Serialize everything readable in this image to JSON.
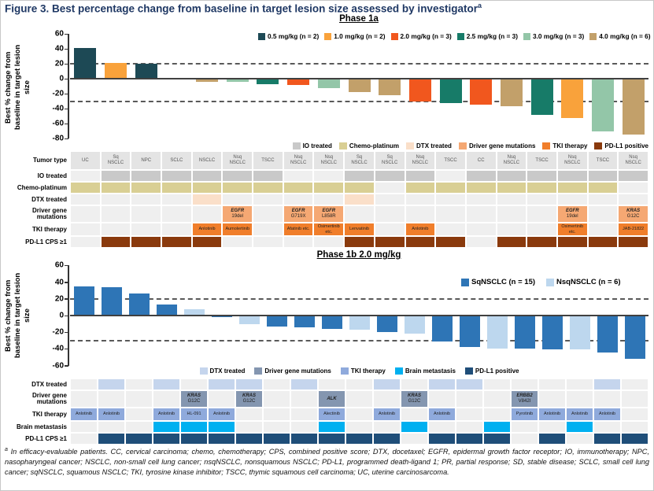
{
  "figure": {
    "title": "Figure 3. Best percentage change from baseline in target lesion size assessed by investigator",
    "title_superscript": "a",
    "footnote_superscript": "a",
    "footnote": "In efficacy-evaluable patients. CC, cervical carcinoma; chemo, chemotherapy; CPS, combined positive score; DTX, docetaxel; EGFR, epidermal growth factor receptor; IO, immunotherapy; NPC, nasopharyngeal cancer; NSCLC, non-small cell lung cancer; nsqNSCLC, nonsquamous NSCLC; PD-L1, programmed death-ligand 1; PR, partial response; SD, stable disease; SCLC, small cell lung cancer; sqNSCLC, squamous NSCLC; TKI, tyrosine kinase inhibitor; TSCC, thymic squamous cell carcinoma; UC, uterine carcinosarcoma."
  },
  "chart_data": [
    {
      "type": "bar",
      "title": "Phase 1a",
      "ylabel": "Best % change from\nbaseline in target lesion\nsize",
      "ylim": [
        -80,
        60
      ],
      "yticks": [
        60,
        40,
        20,
        0,
        -20,
        -40,
        -60,
        -80
      ],
      "reference_lines": [
        20,
        -30
      ],
      "grid": false,
      "legend_position": "top-right-inside",
      "series_legend": [
        {
          "key": "0.5",
          "label": "0.5 mg/kg (n = 2)",
          "color": "#1D4955"
        },
        {
          "key": "1.0",
          "label": "1.0 mg/kg (n = 2)",
          "color": "#F9A23B"
        },
        {
          "key": "2.0",
          "label": "2.0 mg/kg (n = 3)",
          "color": "#F1571E"
        },
        {
          "key": "2.5",
          "label": "2.5 mg/kg (n = 3)",
          "color": "#177B68"
        },
        {
          "key": "3.0",
          "label": "3.0 mg/kg (n = 3)",
          "color": "#93C6A8"
        },
        {
          "key": "4.0",
          "label": "4.0 mg/kg (n = 6)",
          "color": "#C2A06A"
        }
      ],
      "attribute_legend": [
        {
          "key": "io",
          "label": "IO treated",
          "color": "#C9C9C9"
        },
        {
          "key": "chemo",
          "label": "Chemo-platinum",
          "color": "#D9CF94"
        },
        {
          "key": "dtx",
          "label": "DTX treated",
          "color": "#FADFC9"
        },
        {
          "key": "driver",
          "label": "Driver gene mutations",
          "color": "#F5A873"
        },
        {
          "key": "tki",
          "label": "TKI therapy",
          "color": "#F07E2B"
        },
        {
          "key": "pdl1",
          "label": "PD-L1 positive",
          "color": "#8A3A0D"
        }
      ],
      "grid_rows": [
        {
          "key": "tumor",
          "label": "Tumor type"
        },
        {
          "key": "io",
          "label": "IO treated"
        },
        {
          "key": "chemo",
          "label": "Chemo-platinum"
        },
        {
          "key": "dtx",
          "label": "DTX treated"
        },
        {
          "key": "driver",
          "label": "Driver gene mutations"
        },
        {
          "key": "tki",
          "label": "TKI therapy"
        },
        {
          "key": "pdl1",
          "label": "PD-L1 CPS ≥1"
        }
      ],
      "patients": [
        {
          "tumor": "UC",
          "series": "0.5",
          "value": 41,
          "io": false,
          "chemo": true,
          "dtx": false,
          "driver": null,
          "tki": null,
          "pdl1": false
        },
        {
          "tumor": "Sq\nNSCLC",
          "series": "1.0",
          "value": 21,
          "io": true,
          "chemo": true,
          "dtx": false,
          "driver": null,
          "tki": null,
          "pdl1": true
        },
        {
          "tumor": "NPC",
          "series": "0.5",
          "value": 20,
          "io": true,
          "chemo": true,
          "dtx": false,
          "driver": null,
          "tki": null,
          "pdl1": true
        },
        {
          "tumor": "SCLC",
          "series": "4.0",
          "value": 0,
          "io": true,
          "chemo": true,
          "dtx": false,
          "driver": null,
          "tki": null,
          "pdl1": true
        },
        {
          "tumor": "NSCLC",
          "series": "4.0",
          "value": -4,
          "io": true,
          "chemo": true,
          "dtx": true,
          "driver": null,
          "tki": "Anlotinib",
          "pdl1": true
        },
        {
          "tumor": "Nsq\nNSCLC",
          "series": "3.0",
          "value": -4,
          "io": true,
          "chemo": true,
          "dtx": false,
          "driver": "EGFR\n19del",
          "tki": "Aumolertinib",
          "pdl1": false
        },
        {
          "tumor": "TSCC",
          "series": "2.5",
          "value": -7,
          "io": true,
          "chemo": true,
          "dtx": false,
          "driver": null,
          "tki": null,
          "pdl1": false
        },
        {
          "tumor": "Nsq\nNSCLC",
          "series": "2.0",
          "value": -8,
          "io": false,
          "chemo": true,
          "dtx": false,
          "driver": "EGFR\nG719X",
          "tki": "Afatinib etc.",
          "pdl1": false
        },
        {
          "tumor": "Nsq\nNSCLC",
          "series": "3.0",
          "value": -13,
          "io": false,
          "chemo": true,
          "dtx": false,
          "driver": "EGFR\nL858R",
          "tki": "Osimertinib etc.",
          "pdl1": false
        },
        {
          "tumor": "Sq\nNSCLC",
          "series": "4.0",
          "value": -18,
          "io": true,
          "chemo": true,
          "dtx": true,
          "driver": null,
          "tki": "Lenvatinib",
          "pdl1": true
        },
        {
          "tumor": "Sq\nNSCLC",
          "series": "4.0",
          "value": -22,
          "io": true,
          "chemo": false,
          "dtx": false,
          "driver": null,
          "tki": null,
          "pdl1": true
        },
        {
          "tumor": "Nsq\nNSCLC",
          "series": "2.0",
          "value": -30,
          "io": true,
          "chemo": true,
          "dtx": false,
          "driver": null,
          "tki": "Anlotinib",
          "pdl1": true
        },
        {
          "tumor": "TSCC",
          "series": "2.5",
          "value": -33,
          "io": false,
          "chemo": true,
          "dtx": false,
          "driver": null,
          "tki": null,
          "pdl1": true
        },
        {
          "tumor": "CC",
          "series": "2.0",
          "value": -35,
          "io": true,
          "chemo": true,
          "dtx": false,
          "driver": null,
          "tki": null,
          "pdl1": false
        },
        {
          "tumor": "Nsq\nNSCLC",
          "series": "4.0",
          "value": -37,
          "io": true,
          "chemo": true,
          "dtx": false,
          "driver": null,
          "tki": null,
          "pdl1": true
        },
        {
          "tumor": "TSCC",
          "series": "2.5",
          "value": -48,
          "io": true,
          "chemo": true,
          "dtx": false,
          "driver": null,
          "tki": null,
          "pdl1": true
        },
        {
          "tumor": "Nsq\nNSCLC",
          "series": "1.0",
          "value": -53,
          "io": true,
          "chemo": true,
          "dtx": false,
          "driver": "EGFR\n19del",
          "tki": "Osimertinib etc.",
          "pdl1": true
        },
        {
          "tumor": "TSCC",
          "series": "3.0",
          "value": -71,
          "io": true,
          "chemo": true,
          "dtx": false,
          "driver": null,
          "tki": null,
          "pdl1": true
        },
        {
          "tumor": "Nsq\nNSCLC",
          "series": "4.0",
          "value": -75,
          "io": true,
          "chemo": false,
          "dtx": false,
          "driver": "KRAS\nG12C",
          "tki": "JAB-21822",
          "pdl1": true
        }
      ]
    },
    {
      "type": "bar",
      "title": "Phase 1b 2.0 mg/kg",
      "ylabel": "Best % change from\nbaseline in target lesion\nsize",
      "ylim": [
        -60,
        60
      ],
      "yticks": [
        60,
        40,
        20,
        0,
        -20,
        -40,
        -60
      ],
      "reference_lines": [
        20,
        -30
      ],
      "grid": false,
      "legend_position": "top-right-inside",
      "series_legend": [
        {
          "key": "sq",
          "label": "SqNSCLC (n = 15)",
          "color": "#2E75B6"
        },
        {
          "key": "nsq",
          "label": "NsqNSCLC (n = 6)",
          "color": "#BDD7EE"
        }
      ],
      "attribute_legend": [
        {
          "key": "dtx",
          "label": "DTX treated",
          "color": "#C5D5ED"
        },
        {
          "key": "driver",
          "label": "Driver gene mutations",
          "color": "#8496B0"
        },
        {
          "key": "tki",
          "label": "TKI therapy",
          "color": "#8FAADC"
        },
        {
          "key": "brain",
          "label": "Brain metastasis",
          "color": "#00B0F0"
        },
        {
          "key": "pdl1",
          "label": "PD-L1 positive",
          "color": "#1F4E79"
        }
      ],
      "grid_rows": [
        {
          "key": "dtx",
          "label": "DTX treated"
        },
        {
          "key": "driver",
          "label": "Driver gene mutations"
        },
        {
          "key": "tki",
          "label": "TKI therapy"
        },
        {
          "key": "brain",
          "label": "Brain metastasis"
        },
        {
          "key": "pdl1",
          "label": "PD-L1 CPS ≥1"
        }
      ],
      "patients": [
        {
          "series": "sq",
          "value": 35,
          "dtx": false,
          "driver": null,
          "tki": "Anlotinib",
          "brain": false,
          "pdl1": false
        },
        {
          "series": "sq",
          "value": 34,
          "dtx": true,
          "driver": null,
          "tki": "Anlotinib",
          "brain": false,
          "pdl1": true
        },
        {
          "series": "sq",
          "value": 26,
          "dtx": false,
          "driver": null,
          "tki": null,
          "brain": false,
          "pdl1": true
        },
        {
          "series": "sq",
          "value": 13,
          "dtx": true,
          "driver": null,
          "tki": "Anlotinib",
          "brain": true,
          "pdl1": true
        },
        {
          "series": "nsq",
          "value": 8,
          "dtx": false,
          "driver": "KRAS\nG12C",
          "tki": "HL-091",
          "brain": true,
          "pdl1": true
        },
        {
          "series": "sq",
          "value": -2,
          "dtx": true,
          "driver": null,
          "tki": "Anlotinib",
          "brain": true,
          "pdl1": true
        },
        {
          "series": "nsq",
          "value": -10,
          "dtx": true,
          "driver": "KRAS\nG12C",
          "tki": null,
          "brain": false,
          "pdl1": true
        },
        {
          "series": "sq",
          "value": -13,
          "dtx": false,
          "driver": null,
          "tki": null,
          "brain": false,
          "pdl1": true
        },
        {
          "series": "sq",
          "value": -14,
          "dtx": true,
          "driver": null,
          "tki": null,
          "brain": false,
          "pdl1": true
        },
        {
          "series": "sq",
          "value": -16,
          "dtx": false,
          "driver": "ALK",
          "tki": "Alectinib",
          "brain": true,
          "pdl1": true
        },
        {
          "series": "nsq",
          "value": -17,
          "dtx": false,
          "driver": null,
          "tki": null,
          "brain": false,
          "pdl1": true
        },
        {
          "series": "sq",
          "value": -20,
          "dtx": true,
          "driver": null,
          "tki": "Anlotinib",
          "brain": false,
          "pdl1": true
        },
        {
          "series": "nsq",
          "value": -22,
          "dtx": false,
          "driver": "KRAS\nG12C",
          "tki": null,
          "brain": true,
          "pdl1": false
        },
        {
          "series": "sq",
          "value": -31,
          "dtx": true,
          "driver": null,
          "tki": "Anlotinib",
          "brain": false,
          "pdl1": true
        },
        {
          "series": "sq",
          "value": -38,
          "dtx": true,
          "driver": null,
          "tki": null,
          "brain": false,
          "pdl1": true
        },
        {
          "series": "nsq",
          "value": -40,
          "dtx": false,
          "driver": null,
          "tki": null,
          "brain": true,
          "pdl1": true
        },
        {
          "series": "sq",
          "value": -40,
          "dtx": false,
          "driver": "ERBB2\nV842I",
          "tki": "Pyrotinib",
          "brain": false,
          "pdl1": false
        },
        {
          "series": "sq",
          "value": -41,
          "dtx": false,
          "driver": null,
          "tki": "Anlotinib",
          "brain": false,
          "pdl1": true
        },
        {
          "series": "nsq",
          "value": -41,
          "dtx": false,
          "driver": null,
          "tki": "Anlotinib",
          "brain": true,
          "pdl1": false
        },
        {
          "series": "sq",
          "value": -44,
          "dtx": true,
          "driver": null,
          "tki": "Anlotinib",
          "brain": false,
          "pdl1": true
        },
        {
          "series": "sq",
          "value": -52,
          "dtx": false,
          "driver": null,
          "tki": null,
          "brain": false,
          "pdl1": true
        }
      ]
    }
  ]
}
